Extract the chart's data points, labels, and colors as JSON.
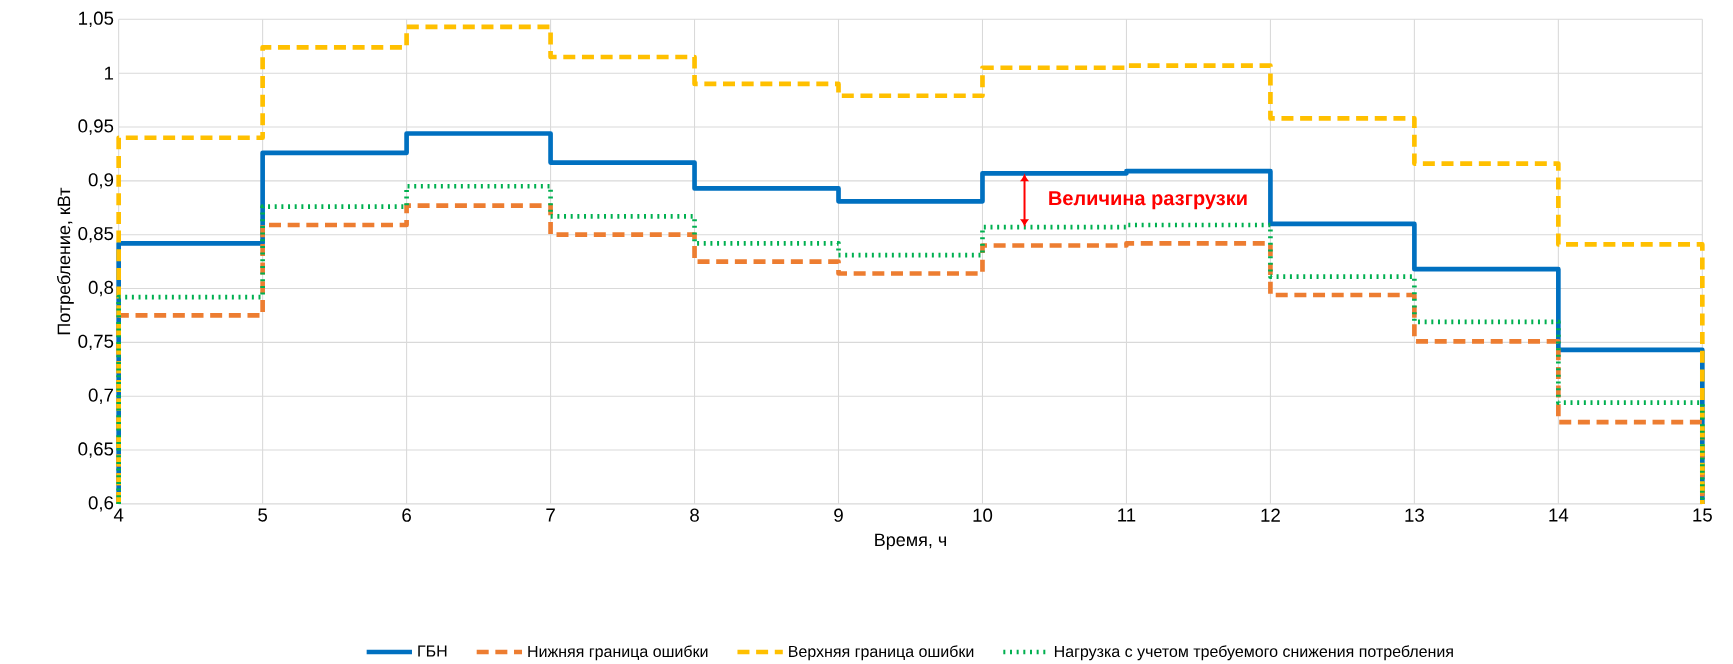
{
  "chart_data": {
    "type": "step",
    "xlabel": "Время, ч",
    "ylabel": "Потребление, кВт",
    "xlim": [
      4,
      15
    ],
    "xticks": [
      4,
      5,
      6,
      7,
      8,
      9,
      10,
      11,
      12,
      13,
      14,
      15
    ],
    "ylim": [
      0.6,
      1.05
    ],
    "yticks": [
      {
        "value": 0.6,
        "label": "0,6"
      },
      {
        "value": 0.65,
        "label": "0,65"
      },
      {
        "value": 0.7,
        "label": "0,7"
      },
      {
        "value": 0.75,
        "label": "0,75"
      },
      {
        "value": 0.8,
        "label": "0,8"
      },
      {
        "value": 0.85,
        "label": "0,85"
      },
      {
        "value": 0.9,
        "label": "0,9"
      },
      {
        "value": 0.95,
        "label": "0,95"
      },
      {
        "value": 1,
        "label": "1"
      },
      {
        "value": 1.05,
        "label": "1,05"
      }
    ],
    "grid": true,
    "legend": "bottom",
    "x": [
      4,
      4,
      5,
      6,
      7,
      8,
      9,
      10,
      11,
      12,
      13,
      14,
      15,
      15
    ],
    "series": [
      {
        "name": "ГБН",
        "color": "#0070c0",
        "line_style": "solid",
        "values": [
          0.6,
          0.842,
          0.926,
          0.944,
          0.917,
          0.893,
          0.881,
          0.907,
          0.909,
          0.86,
          0.818,
          0.743,
          0.743,
          0.6
        ]
      },
      {
        "name": "Нижняя граница ошибки",
        "color": "#ed7d31",
        "line_style": "dashed",
        "values": [
          0.6,
          0.775,
          0.859,
          0.877,
          0.85,
          0.825,
          0.814,
          0.84,
          0.842,
          0.794,
          0.751,
          0.676,
          0.676,
          0.6
        ]
      },
      {
        "name": "Верхняя граница ошибки",
        "color": "#ffc000",
        "line_style": "dashed",
        "values": [
          0.6,
          0.94,
          1.024,
          1.043,
          1.015,
          0.99,
          0.979,
          1.005,
          1.007,
          0.958,
          0.916,
          0.841,
          0.841,
          0.6
        ]
      },
      {
        "name": "Нагрузка с учетом требуемого снижения потребления",
        "color": "#00b050",
        "line_style": "dotted",
        "values": [
          0.6,
          0.792,
          0.876,
          0.895,
          0.867,
          0.842,
          0.831,
          0.857,
          0.859,
          0.811,
          0.769,
          0.694,
          0.694,
          0.6
        ]
      }
    ],
    "annotations": [
      "Величина разгрузки"
    ]
  }
}
